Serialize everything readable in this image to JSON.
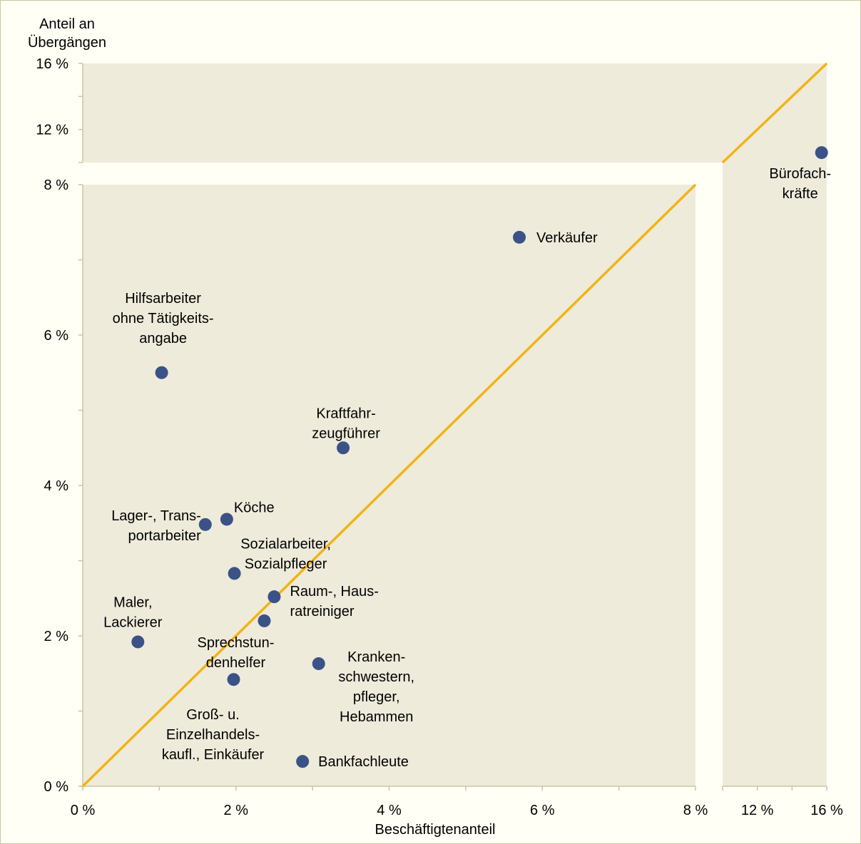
{
  "chart_data": {
    "type": "scatter",
    "xlabel": "Beschäftigtenanteil",
    "ylabel_lines": [
      "Anteil an",
      "Übergängen"
    ],
    "x_ticks_main": [
      "0 %",
      "2 %",
      "4 %",
      "6 %",
      "8 %"
    ],
    "x_ticks_broken": [
      "12 %",
      "16 %"
    ],
    "y_ticks_main": [
      "0 %",
      "2 %",
      "4 %",
      "6 %",
      "8 %"
    ],
    "y_ticks_broken": [
      "12 %",
      "16 %"
    ],
    "main_range": [
      0,
      8
    ],
    "broken_range": [
      10,
      16
    ],
    "grid": false,
    "reference_line": "y = x",
    "colors": {
      "plot_bg": "#eeebdb",
      "point": "#3b5287",
      "diagonal": "#f2b316",
      "axis": "#c8c8a0"
    },
    "points": [
      {
        "label": [
          "Bürofach-",
          "kräfte"
        ],
        "x": 15.7,
        "y": 10.6
      },
      {
        "label": [
          "Verkäufer"
        ],
        "x": 5.7,
        "y": 7.3
      },
      {
        "label": [
          "Hilfsarbeiter",
          "ohne Tätigkeits-",
          "angabe"
        ],
        "x": 1.03,
        "y": 5.5
      },
      {
        "label": [
          "Kraftfahr-",
          "zeugführer"
        ],
        "x": 3.4,
        "y": 4.5
      },
      {
        "label": [
          "Köche"
        ],
        "x": 1.88,
        "y": 3.55
      },
      {
        "label": [
          "Lager-, Trans-",
          "portarbeiter"
        ],
        "x": 1.6,
        "y": 3.48
      },
      {
        "label": [
          "Sozialarbeiter,",
          "Sozialpfleger"
        ],
        "x": 1.98,
        "y": 2.83
      },
      {
        "label": [
          "Raum-, Haus-",
          "ratreiniger"
        ],
        "x": 2.5,
        "y": 2.52
      },
      {
        "label": [
          "Sprechstun-",
          "denhelfer"
        ],
        "x": 2.37,
        "y": 2.2
      },
      {
        "label": [
          "Maler,",
          "Lackierer"
        ],
        "x": 0.72,
        "y": 1.92
      },
      {
        "label": [
          "Kranken-",
          "schwestern,",
          "pfleger,",
          "Hebammen"
        ],
        "x": 3.08,
        "y": 1.63
      },
      {
        "label": [
          "Groß- u.",
          "Einzelhandels-",
          "kaufl., Einkäufer"
        ],
        "x": 1.97,
        "y": 1.42
      },
      {
        "label": [
          "Bankfachleute"
        ],
        "x": 2.87,
        "y": 0.33
      }
    ]
  }
}
